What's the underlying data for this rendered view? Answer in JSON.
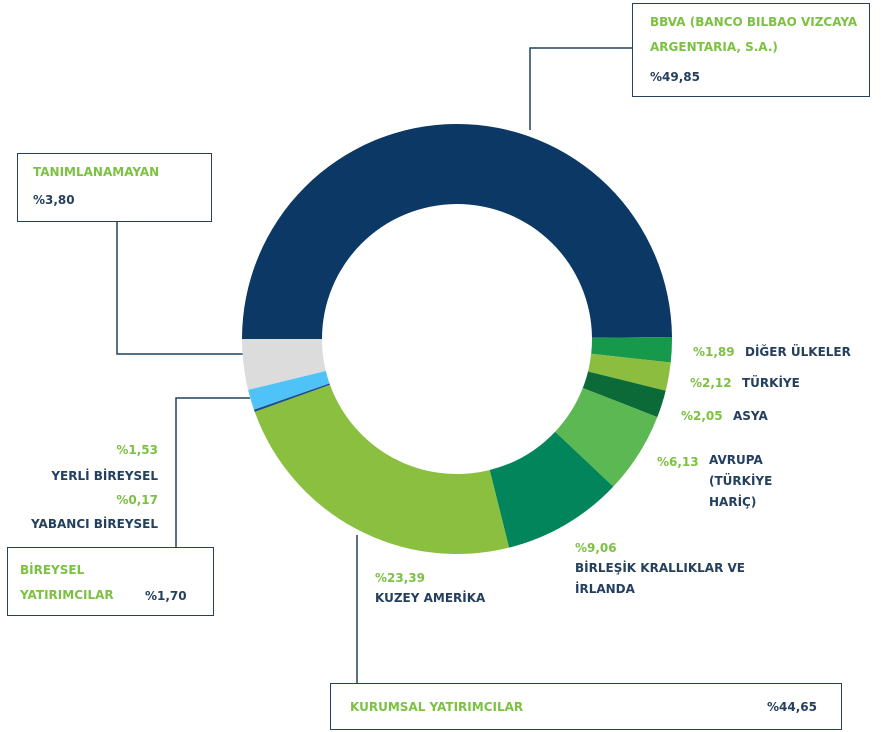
{
  "chart_data": {
    "type": "donut",
    "categories": [
      "BBVA (BANCO BILBAO VIZCAYA ARGENTARIA, S.A.)",
      "DİĞER ÜLKELER",
      "TÜRKİYE",
      "ASYA",
      "AVRUPA (TÜRKİYE HARİÇ)",
      "BİRLEŞİK KRALLIKLAR VE İRLANDA",
      "KUZEY AMERİKA",
      "YABANCI BİREYSEL",
      "YERLİ BİREYSEL",
      "TANIMLANAMAYAN"
    ],
    "values": [
      49.85,
      1.89,
      2.12,
      2.05,
      6.13,
      9.06,
      23.39,
      0.17,
      1.53,
      3.8
    ],
    "value_labels": [
      "%49,85",
      "%1,89",
      "%2,12",
      "%2,05",
      "%6,13",
      "%9,06",
      "%23,39",
      "%0,17",
      "%1,53",
      "%3,80"
    ],
    "colors": [
      "#0b3864",
      "#17994c",
      "#8cbd3f",
      "#0c6a38",
      "#5bb852",
      "#02855a",
      "#8abf40",
      "#1f4e8c",
      "#4fc3f7",
      "#dcdcdc"
    ],
    "groups": [
      {
        "name": "KURUMSAL YATIRIMCILAR",
        "value": 44.65,
        "value_label": "%44,65"
      },
      {
        "name": "BİREYSEL YATIRIMCILAR",
        "value": 1.7,
        "value_label": "%1,70"
      }
    ]
  }
}
